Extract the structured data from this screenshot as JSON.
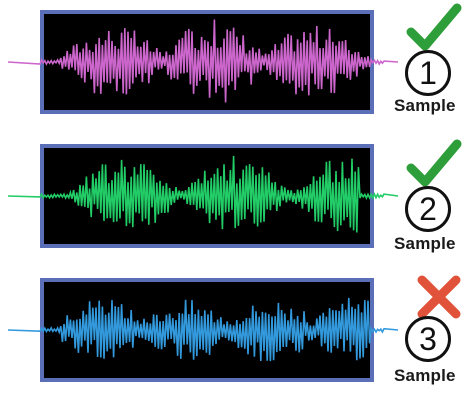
{
  "samples": [
    {
      "number": "1",
      "label": "Sample",
      "status": "check",
      "status_icon": "checkmark-icon",
      "wave_color": "#cc66cc"
    },
    {
      "number": "2",
      "label": "Sample",
      "status": "check",
      "status_icon": "checkmark-icon",
      "wave_color": "#22cc66"
    },
    {
      "number": "3",
      "label": "Sample",
      "status": "cross",
      "status_icon": "cross-icon",
      "wave_color": "#3399dd"
    }
  ],
  "colors": {
    "panel_background": "#000000",
    "panel_border": "#5a6fb8",
    "check": "#2e9e3a",
    "cross": "#e0533a"
  }
}
